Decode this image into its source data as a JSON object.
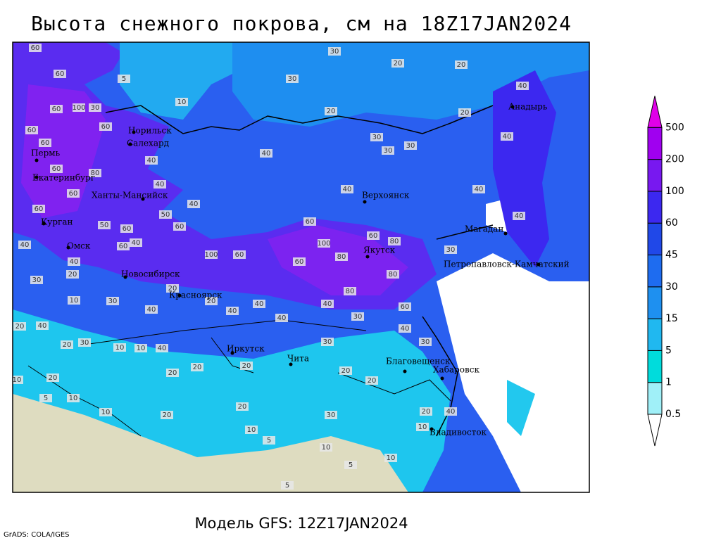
{
  "title": "Высота снежного покрова, см на 18Z17JAN2024",
  "subtitle": "Модель GFS: 12Z17JAN2024",
  "credit": "GrADS: COLA/IGES",
  "map": {
    "cities": [
      "Анадырь",
      "Норильск",
      "Салехард",
      "Пермь",
      "Екатеринбург",
      "Ханты-Мансийск",
      "Курган",
      "Омск",
      "Новосибирск",
      "Красноярск",
      "Иркутск",
      "Чита",
      "Благовещенск",
      "Хабаровск",
      "Владивосток",
      "Якутск",
      "Верхоянск",
      "Магадан",
      "Петропавловск-Камчатский"
    ],
    "contour_labels": [
      60,
      60,
      60,
      100,
      30,
      60,
      60,
      60,
      60,
      80,
      60,
      60,
      50,
      60,
      40,
      60,
      40,
      40,
      30,
      20,
      50,
      60,
      100,
      60,
      60,
      80,
      80,
      60,
      100,
      60,
      80,
      80,
      60,
      40,
      30,
      40,
      40,
      40,
      40,
      20,
      10,
      30,
      20,
      30,
      20,
      20,
      40,
      40,
      40,
      40,
      40,
      20,
      30,
      30,
      30,
      40,
      30,
      30,
      20,
      20,
      30,
      20,
      20,
      20,
      40,
      10,
      10,
      30,
      20,
      40,
      20,
      20,
      10,
      10,
      10,
      20,
      20,
      10,
      5,
      30,
      10,
      5,
      10,
      20,
      10,
      40,
      5,
      5,
      5,
      40,
      40,
      40,
      20,
      40,
      30,
      10
    ]
  },
  "colorbar": {
    "levels": [
      0.5,
      1,
      5,
      15,
      30,
      45,
      60,
      100,
      200,
      500
    ],
    "colors": [
      "#ffffff",
      "#a0f0f8",
      "#00dcdc",
      "#20b8f0",
      "#1e90f0",
      "#1e6cf0",
      "#2048e8",
      "#3c28f0",
      "#7818f0",
      "#a000f0",
      "#e000e8"
    ]
  }
}
